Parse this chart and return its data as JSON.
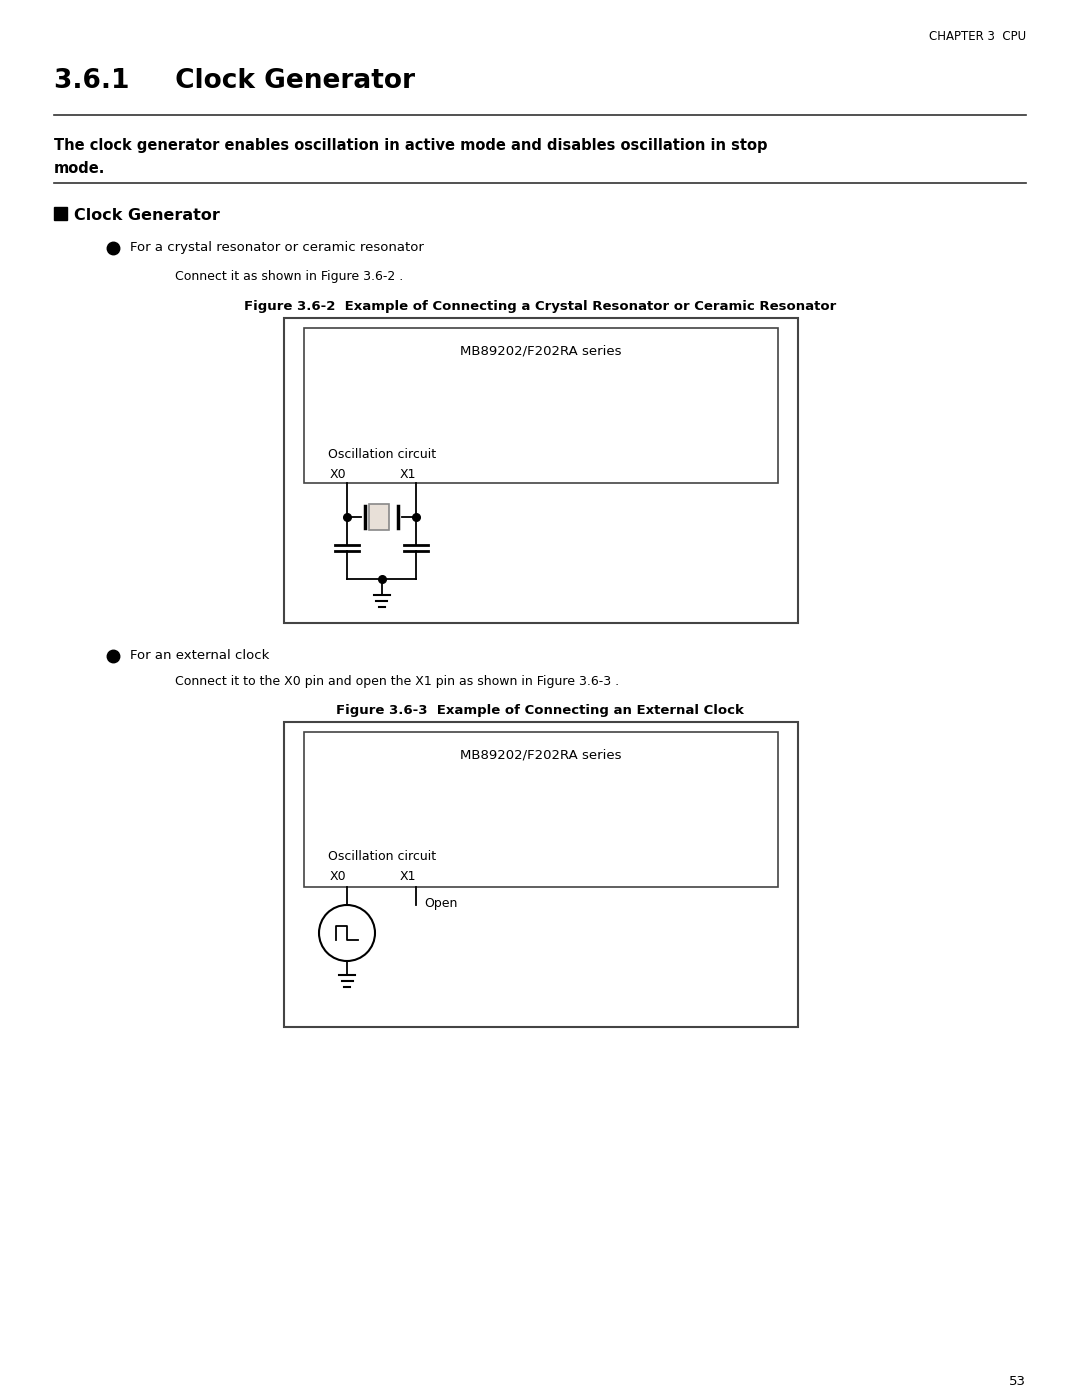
{
  "page_header": "CHAPTER 3  CPU",
  "section_title": "3.6.1     Clock Generator",
  "intro_text_line1": "The clock generator enables oscillation in active mode and disables oscillation in stop",
  "intro_text_line2": "mode.",
  "section_heading": "Clock Generator",
  "bullet1_text": "For a crystal resonator or ceramic resonator",
  "bullet1_sub": "Connect it as shown in Figure 3.6-2 .",
  "fig1_title": "Figure 3.6-2  Example of Connecting a Crystal Resonator or Ceramic Resonator",
  "fig1_chip_label": "MB89202/F202RA series",
  "fig1_osc_label": "Oscillation circuit",
  "fig1_x0": "X0",
  "fig1_x1": "X1",
  "bullet2_text": "For an external clock",
  "bullet2_sub": "Connect it to the X0 pin and open the X1 pin as shown in Figure 3.6-3 .",
  "fig2_title": "Figure 3.6-3  Example of Connecting an External Clock",
  "fig2_chip_label": "MB89202/F202RA series",
  "fig2_osc_label": "Oscillation circuit",
  "fig2_x0": "X0",
  "fig2_x1": "X1",
  "fig2_open_label": "Open",
  "page_number": "53",
  "bg_color": "#ffffff",
  "text_color": "#000000",
  "line_color": "#000000",
  "box_border_color": "#555555"
}
